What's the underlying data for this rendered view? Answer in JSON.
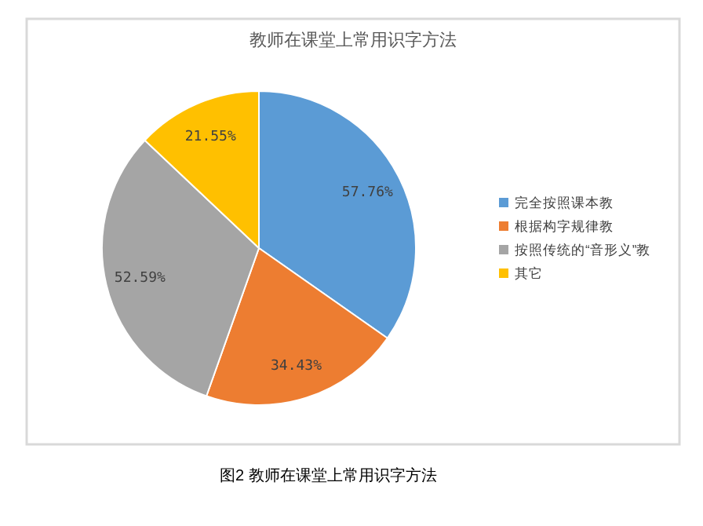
{
  "chart_data": {
    "type": "pie",
    "title": "教师在课堂上常用识字方法",
    "categories": [
      "完全按照课本教",
      "根据构字规律教",
      "按照传统的“音形义”教",
      "其它"
    ],
    "values": [
      57.76,
      34.43,
      52.59,
      21.55
    ],
    "colors": [
      "#5b9bd5",
      "#ed7d31",
      "#a5a5a5",
      "#ffc000"
    ],
    "value_labels": [
      "57.76%",
      "34.43%",
      "52.59%",
      "21.55%"
    ],
    "legend": "right",
    "annotations": [
      "图2 教师在课堂上常用识字方法"
    ]
  }
}
